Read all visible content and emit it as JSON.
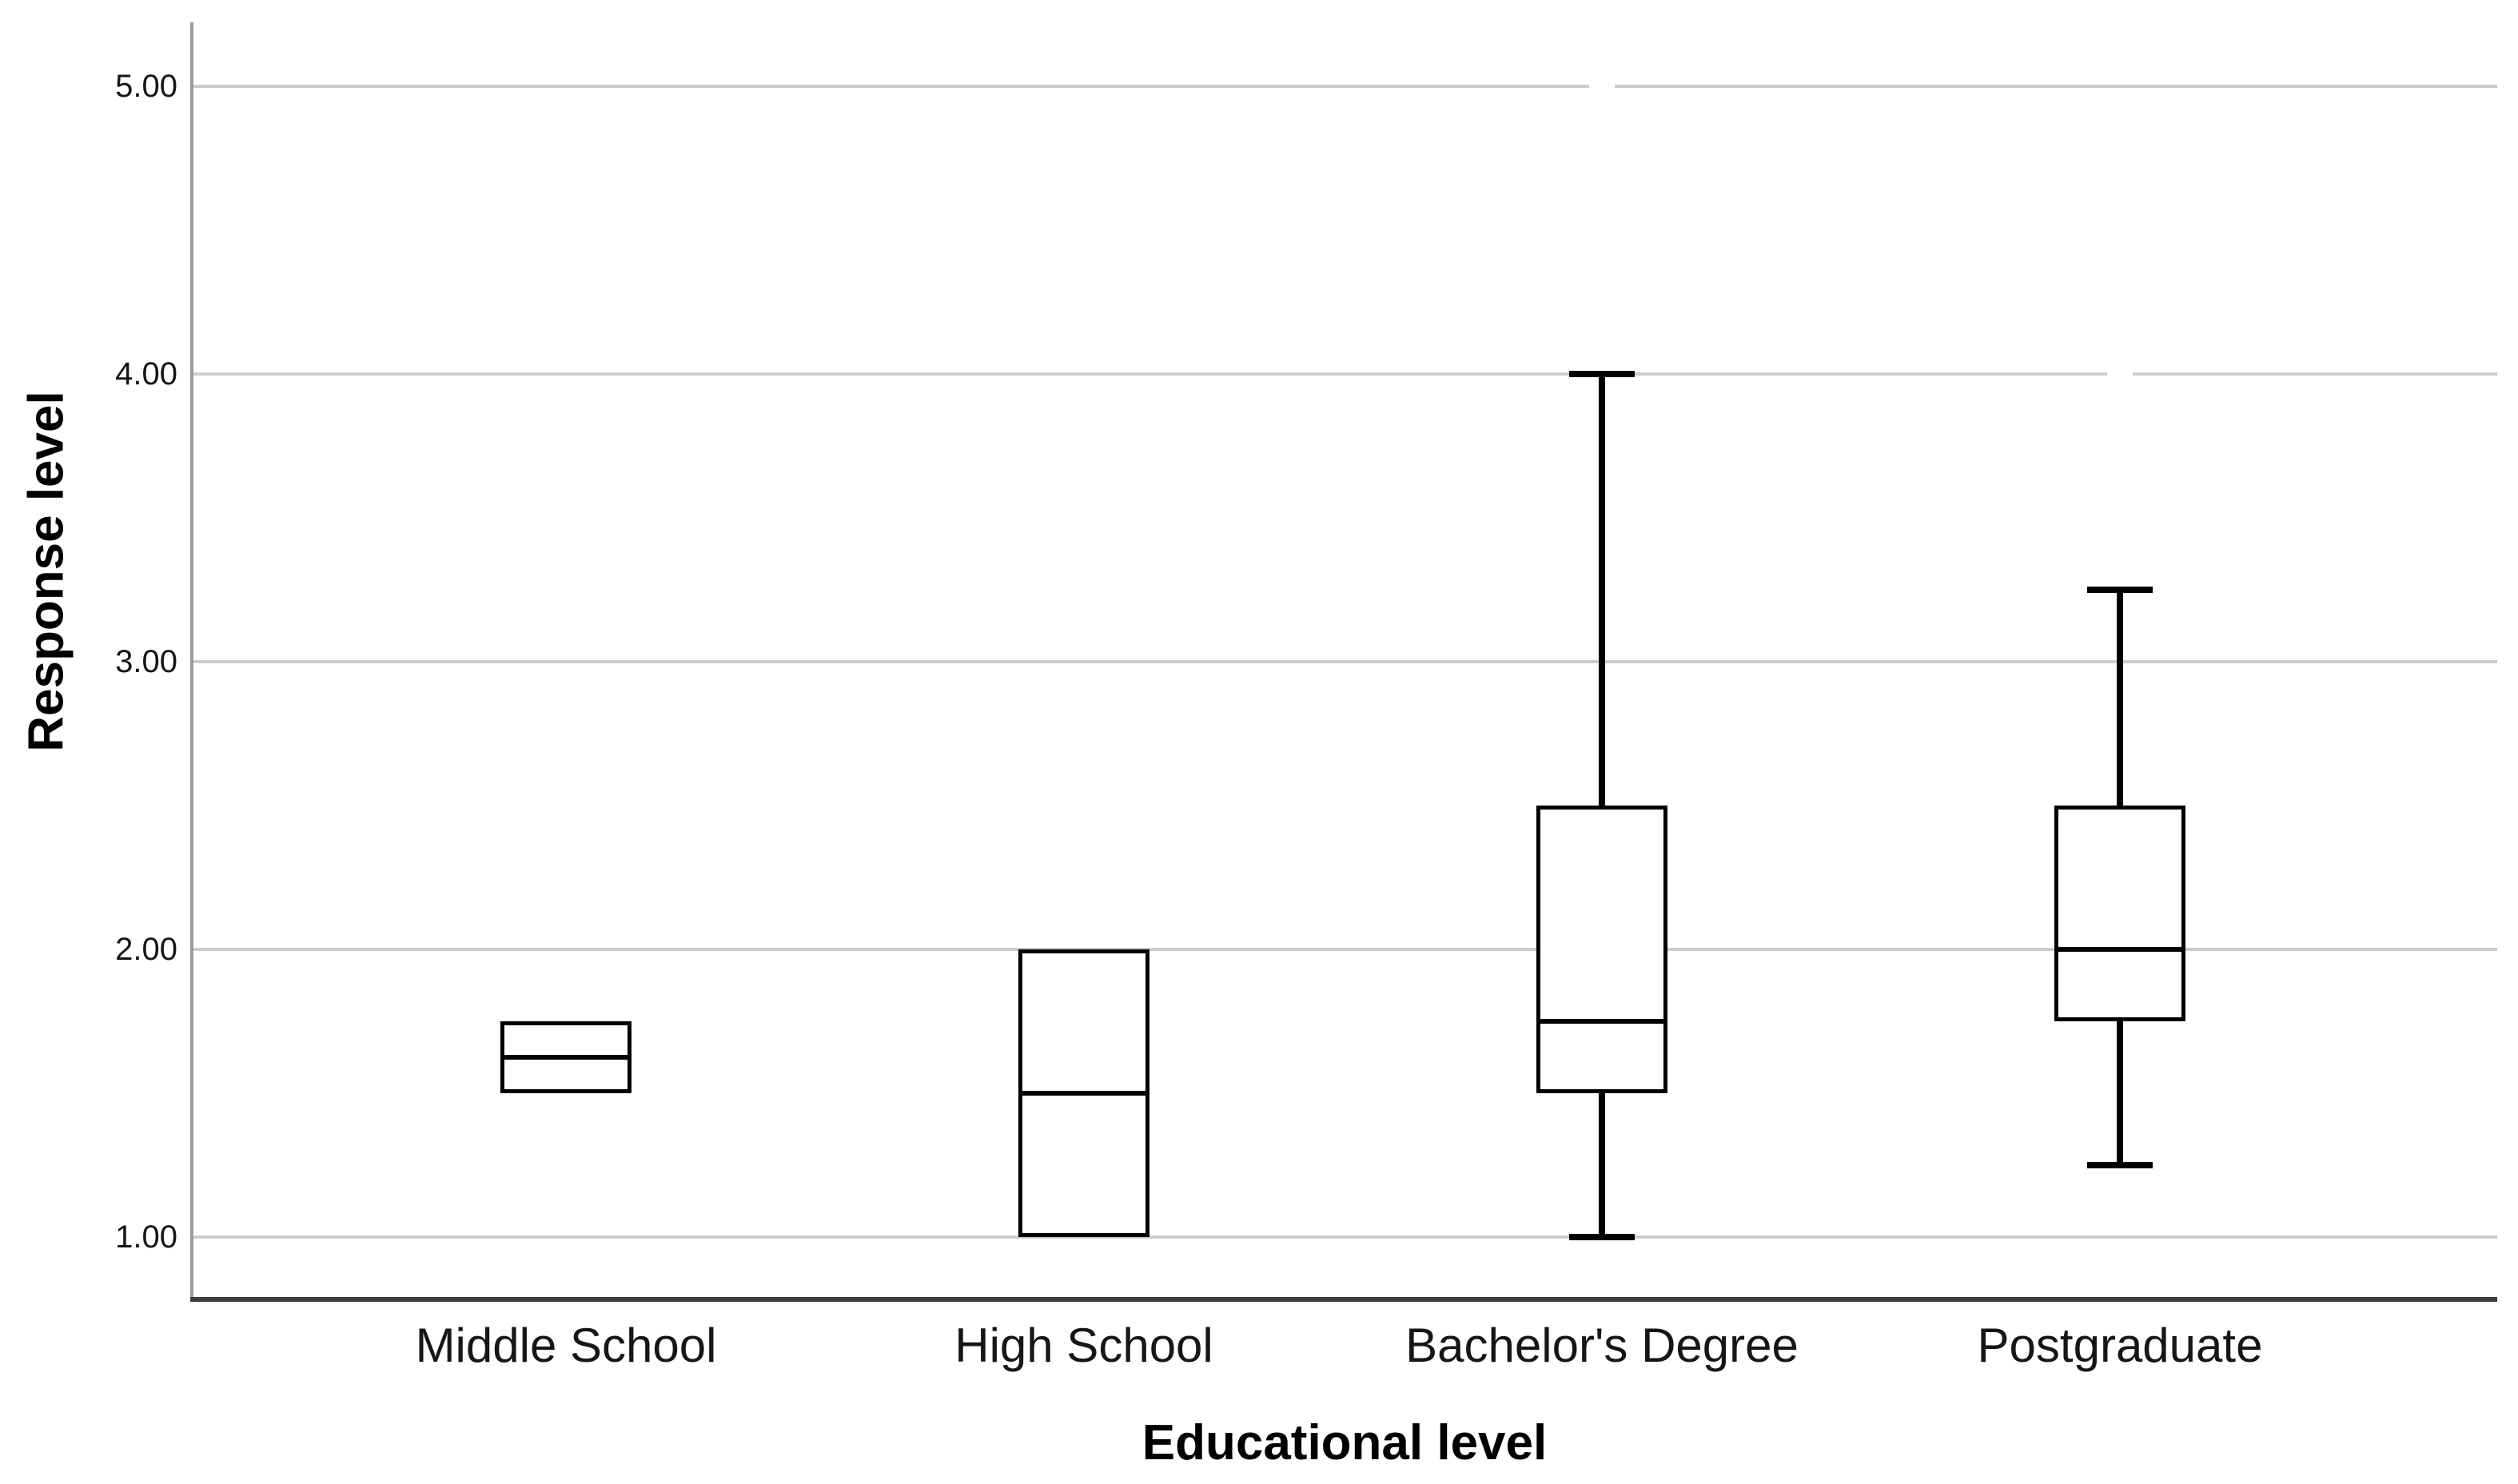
{
  "chart_data": {
    "type": "boxplot",
    "title": "",
    "xlabel": "Educational level",
    "ylabel": "Response level",
    "categories": [
      "Middle School",
      "High School",
      "Bachelor's Degree",
      "Postgraduate"
    ],
    "y_axis": {
      "min": 1.0,
      "max": 5.0,
      "tick_labels": [
        "1.00",
        "2.00",
        "3.00",
        "4.00",
        "5.00"
      ],
      "tick_values": [
        1.0,
        2.0,
        3.0,
        4.0,
        5.0
      ]
    },
    "grid": "horizontal-only",
    "legend": "none",
    "series": [
      {
        "category": "Middle School",
        "q1": 1.5,
        "median": 1.625,
        "q3": 1.75,
        "whisker_low": 1.5,
        "whisker_high": 1.75
      },
      {
        "category": "High School",
        "q1": 1.0,
        "median": 1.5,
        "q3": 2.0,
        "whisker_low": 1.0,
        "whisker_high": 2.0
      },
      {
        "category": "Bachelor's Degree",
        "q1": 1.5,
        "median": 1.75,
        "q3": 2.5,
        "whisker_low": 1.0,
        "whisker_high": 4.0
      },
      {
        "category": "Postgraduate",
        "q1": 1.75,
        "median": 2.0,
        "q3": 2.5,
        "whisker_low": 1.25,
        "whisker_high": 3.25
      }
    ],
    "gridline_gaps": [
      {
        "at_value": 5.0,
        "above_category": "Bachelor's Degree"
      },
      {
        "at_value": 4.0,
        "above_category": "Postgraduate"
      }
    ]
  },
  "colors": {
    "background": "#ffffff",
    "gridline": "#cccccc",
    "y_axis_line": "#9a9a9a",
    "x_axis_line": "#3d3d3d",
    "box_border": "#000000",
    "box_fill": "#ffffff",
    "whisker": "#000000",
    "label_text": "#161616",
    "title_text": "#000000"
  }
}
